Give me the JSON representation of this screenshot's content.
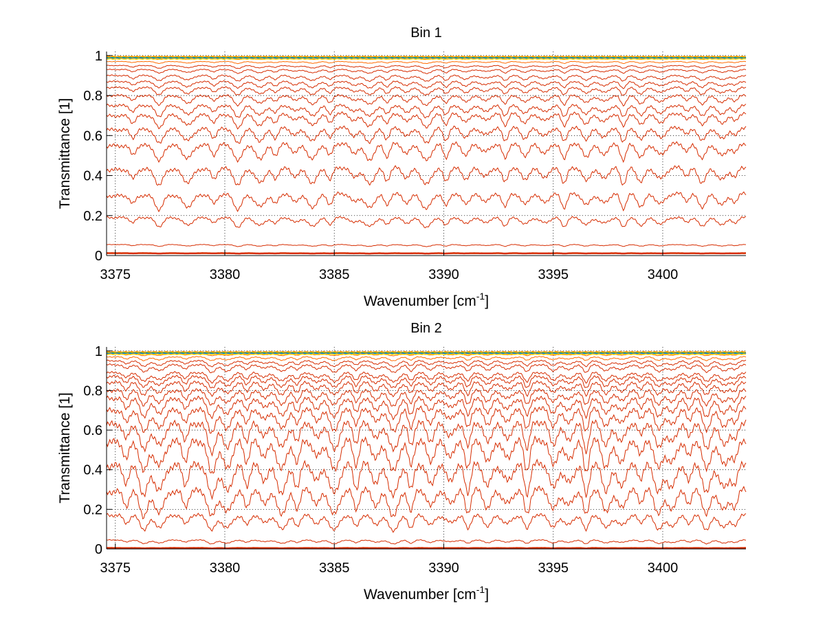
{
  "figure": {
    "background": "#ffffff"
  },
  "chart_data": [
    {
      "type": "line",
      "title": "Bin 1",
      "xlabel": "Wavenumber [cm",
      "xlabel_sup": "-1",
      "xlabel_end": "]",
      "ylabel": "Transmittance [1]",
      "xlim": [
        3374.6,
        3403.8
      ],
      "ylim": [
        0,
        1.02
      ],
      "xticks": [
        3375,
        3380,
        3385,
        3390,
        3395,
        3400
      ],
      "yticks": [
        0,
        0.2,
        0.4,
        0.6,
        0.8,
        1
      ],
      "ytick_labels": [
        "0",
        "0.2",
        "0.4",
        "0.6",
        "0.8",
        "1"
      ],
      "grid": "dotted",
      "series_color": "#d62c00",
      "top_band_colors": [
        "#ffaa00",
        "#ff8800",
        "#00cc66",
        "#2255ff",
        "#ffdd00"
      ],
      "series_baselines": [
        0.012,
        0.055,
        0.19,
        0.31,
        0.44,
        0.56,
        0.64,
        0.71,
        0.75,
        0.8,
        0.84,
        0.87,
        0.9,
        0.93,
        0.95,
        0.97,
        0.985
      ],
      "series_depths": [
        0.002,
        0.01,
        0.05,
        0.08,
        0.09,
        0.09,
        0.08,
        0.07,
        0.06,
        0.05,
        0.04,
        0.035,
        0.03,
        0.02,
        0.015,
        0.01,
        0.005
      ],
      "absorption_lines": [
        3375.8,
        3377.0,
        3378.3,
        3379.5,
        3380.6,
        3381.6,
        3382.3,
        3383.2,
        3384.0,
        3384.8,
        3385.9,
        3386.6,
        3387.4,
        3388.3,
        3389.2,
        3390.1,
        3391.0,
        3391.9,
        3392.8,
        3393.7,
        3394.6,
        3395.5,
        3396.5,
        3397.3,
        3398.2,
        3399.0,
        3399.9,
        3401.1,
        3401.8,
        3402.7,
        3403.3
      ]
    },
    {
      "type": "line",
      "title": "Bin 2",
      "xlabel": "Wavenumber [cm",
      "xlabel_sup": "-1",
      "xlabel_end": "]",
      "ylabel": "Transmittance [1]",
      "xlim": [
        3374.6,
        3403.8
      ],
      "ylim": [
        0,
        1.02
      ],
      "xticks": [
        3375,
        3380,
        3385,
        3390,
        3395,
        3400
      ],
      "yticks": [
        0,
        0.2,
        0.4,
        0.6,
        0.8,
        1
      ],
      "ytick_labels": [
        "0",
        "0.2",
        "0.4",
        "0.6",
        "0.8",
        "1"
      ],
      "grid": "dotted",
      "series_color": "#d62c00",
      "top_band_colors": [
        "#ffaa00",
        "#ff8800",
        "#00cc66",
        "#2255ff",
        "#ffdd00"
      ],
      "series_baselines": [
        0.005,
        0.045,
        0.17,
        0.3,
        0.43,
        0.55,
        0.64,
        0.71,
        0.76,
        0.8,
        0.84,
        0.87,
        0.89,
        0.93,
        0.95,
        0.97,
        0.985
      ],
      "series_depths": [
        0.002,
        0.02,
        0.08,
        0.14,
        0.17,
        0.17,
        0.15,
        0.12,
        0.1,
        0.08,
        0.07,
        0.06,
        0.05,
        0.04,
        0.03,
        0.02,
        0.01
      ],
      "absorption_lines": [
        3375.5,
        3376.3,
        3377.0,
        3378.2,
        3379.4,
        3380.1,
        3381.0,
        3381.8,
        3382.6,
        3383.3,
        3384.2,
        3385.0,
        3386.0,
        3386.9,
        3387.7,
        3388.5,
        3389.4,
        3390.3,
        3391.1,
        3392.0,
        3392.9,
        3393.8,
        3395.0,
        3395.7,
        3396.5,
        3397.4,
        3398.1,
        3399.0,
        3399.8,
        3400.4,
        3401.2,
        3402.0,
        3402.8,
        3403.3
      ]
    }
  ]
}
